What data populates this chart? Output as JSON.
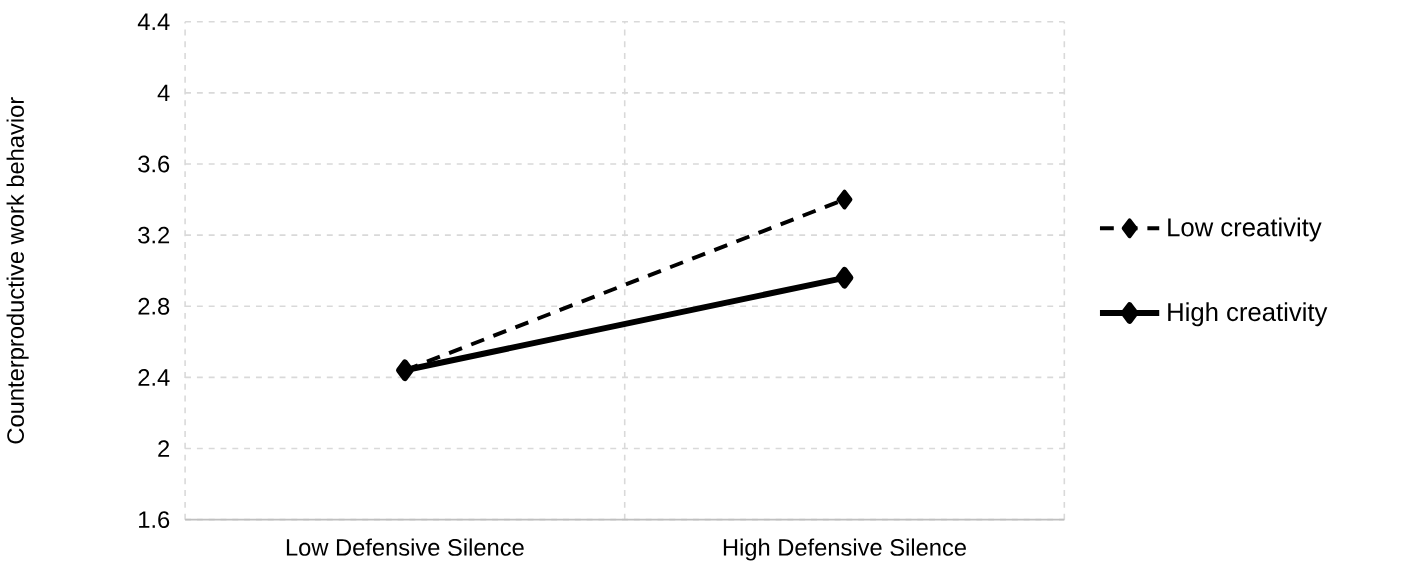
{
  "chart_data": {
    "type": "line",
    "ylabel": "Counterproductive work behavior",
    "categories": [
      "Low Defensive Silence",
      "High Defensive Silence"
    ],
    "series": [
      {
        "name": "Low creativity",
        "color": "#000000",
        "values": [
          2.44,
          3.4
        ],
        "line_style": "dashed"
      },
      {
        "name": "High creativity",
        "color": "#000000",
        "values": [
          2.44,
          2.96
        ],
        "line_style": "solid"
      }
    ],
    "ylim": [
      1.6,
      4.4
    ],
    "yticks": [
      1.6,
      2,
      2.4,
      2.8,
      3.2,
      3.6,
      4,
      4.4
    ],
    "grid": true,
    "legend": "right",
    "marker": "diamond"
  }
}
